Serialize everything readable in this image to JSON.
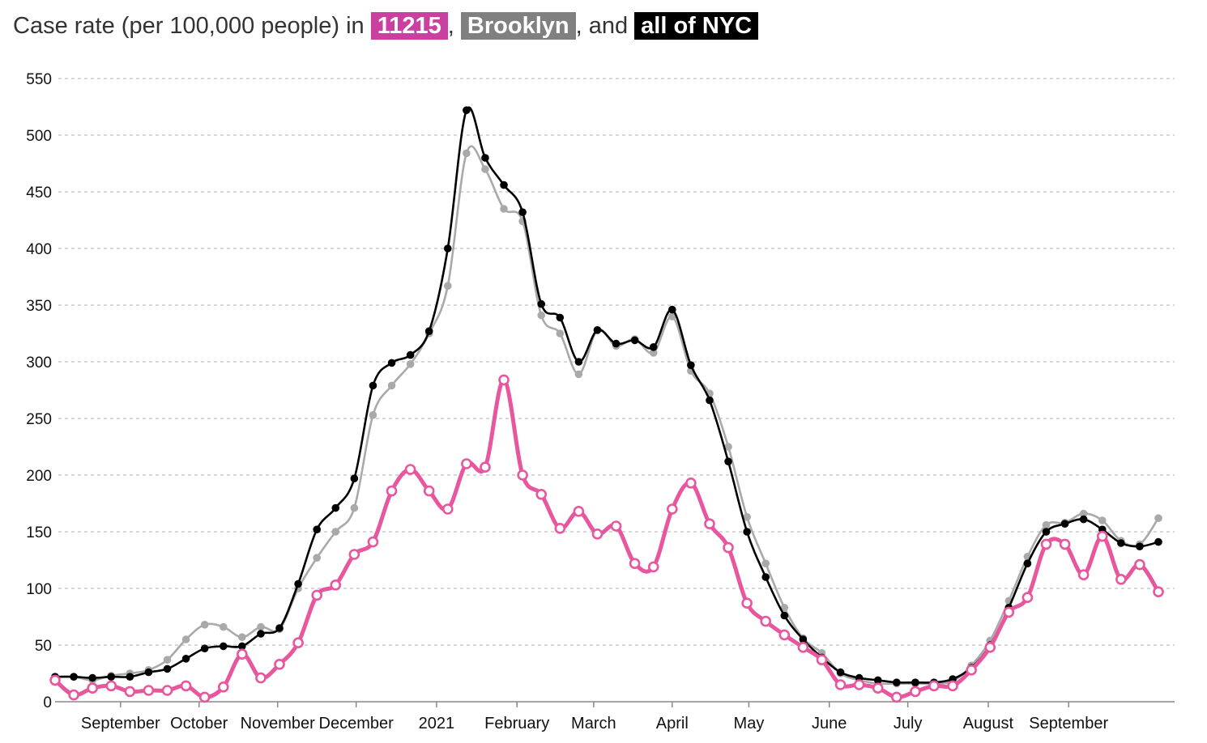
{
  "title": {
    "prefix": "Case rate (per 100,000 people) in",
    "zip": "11215",
    "sep1": ",",
    "borough": "Brooklyn",
    "sep2": ", and",
    "city": "all of NYC"
  },
  "colors": {
    "zip": "#e8579e",
    "zip_tag": "#c940a0",
    "borough": "#a9a9a9",
    "borough_tag": "#808080",
    "city": "#000000"
  },
  "chart_data": {
    "type": "line",
    "ylim": [
      0,
      550
    ],
    "yticks": [
      0,
      50,
      100,
      150,
      200,
      250,
      300,
      350,
      400,
      450,
      500,
      550
    ],
    "grid": true,
    "legend": "in title",
    "x_tick_labels": [
      "September",
      "October",
      "November",
      "December",
      "2021",
      "February",
      "March",
      "April",
      "May",
      "June",
      "July",
      "August",
      "September"
    ],
    "series": [
      {
        "name": "all of NYC",
        "values": [
          22,
          22,
          21,
          22,
          22,
          26,
          29,
          38,
          47,
          49,
          49,
          60,
          65,
          104,
          152,
          171,
          197,
          279,
          299,
          306,
          327,
          400,
          522,
          480,
          456,
          432,
          351,
          339,
          300,
          328,
          316,
          319,
          313,
          346,
          297,
          266,
          212,
          150,
          110,
          76,
          55,
          39,
          26,
          21,
          19,
          17,
          17,
          17,
          20,
          30,
          50,
          83,
          122,
          150,
          157,
          161,
          152,
          140,
          137,
          141
        ]
      },
      {
        "name": "Brooklyn",
        "values": [
          22,
          22,
          19,
          23,
          25,
          28,
          37,
          55,
          68,
          66,
          57,
          66,
          64,
          100,
          127,
          150,
          171,
          253,
          279,
          298,
          325,
          367,
          484,
          470,
          435,
          424,
          341,
          325,
          289,
          328,
          314,
          320,
          308,
          340,
          292,
          272,
          225,
          163,
          122,
          83,
          56,
          43,
          25,
          19,
          16,
          16,
          16,
          16,
          18,
          32,
          54,
          89,
          128,
          156,
          158,
          166,
          160,
          142,
          139,
          162
        ]
      },
      {
        "name": "11215",
        "values": [
          19,
          6,
          12,
          14,
          9,
          10,
          10,
          14,
          4,
          13,
          42,
          21,
          33,
          52,
          94,
          103,
          130,
          141,
          186,
          205,
          186,
          170,
          210,
          207,
          284,
          200,
          183,
          153,
          168,
          148,
          155,
          122,
          119,
          170,
          193,
          157,
          136,
          87,
          71,
          59,
          48,
          37,
          15,
          15,
          12,
          4,
          9,
          14,
          14,
          28,
          48,
          79,
          92,
          139,
          139,
          112,
          146,
          108,
          121,
          97
        ]
      }
    ]
  }
}
